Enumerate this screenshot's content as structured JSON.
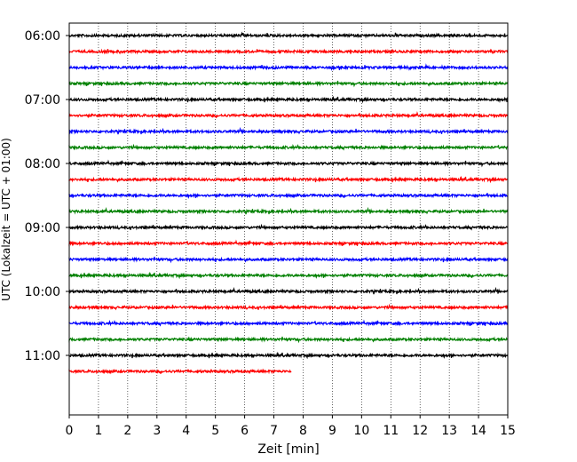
{
  "chart_data": {
    "type": "line",
    "title": "",
    "xlabel": "Zeit  [min]",
    "ylabel": "UTC (Lokalzeit = UTC + 01:00)",
    "xlim": [
      0,
      15
    ],
    "x_ticks": [
      "0",
      "1",
      "2",
      "3",
      "4",
      "5",
      "6",
      "7",
      "8",
      "9",
      "10",
      "11",
      "12",
      "13",
      "14",
      "15"
    ],
    "y_ticks": [
      "06:00",
      "07:00",
      "08:00",
      "09:00",
      "10:00",
      "11:00"
    ],
    "grid": "vertical dotted",
    "trace_interval_minutes": 15,
    "color_cycle": [
      "#000000",
      "#ff0000",
      "#0000ff",
      "#008000"
    ],
    "series": [
      {
        "start": "06:00",
        "end_minute": 15
      },
      {
        "start": "06:15",
        "end_minute": 15
      },
      {
        "start": "06:30",
        "end_minute": 15
      },
      {
        "start": "06:45",
        "end_minute": 15
      },
      {
        "start": "07:00",
        "end_minute": 15
      },
      {
        "start": "07:15",
        "end_minute": 15
      },
      {
        "start": "07:30",
        "end_minute": 15
      },
      {
        "start": "07:45",
        "end_minute": 15
      },
      {
        "start": "08:00",
        "end_minute": 15
      },
      {
        "start": "08:15",
        "end_minute": 15
      },
      {
        "start": "08:30",
        "end_minute": 15
      },
      {
        "start": "08:45",
        "end_minute": 15
      },
      {
        "start": "09:00",
        "end_minute": 15
      },
      {
        "start": "09:15",
        "end_minute": 15
      },
      {
        "start": "09:30",
        "end_minute": 15
      },
      {
        "start": "09:45",
        "end_minute": 15
      },
      {
        "start": "10:00",
        "end_minute": 15
      },
      {
        "start": "10:15",
        "end_minute": 15
      },
      {
        "start": "10:30",
        "end_minute": 15
      },
      {
        "start": "10:45",
        "end_minute": 15
      },
      {
        "start": "11:00",
        "end_minute": 15
      },
      {
        "start": "11:15",
        "end_minute": 7.6
      }
    ]
  }
}
